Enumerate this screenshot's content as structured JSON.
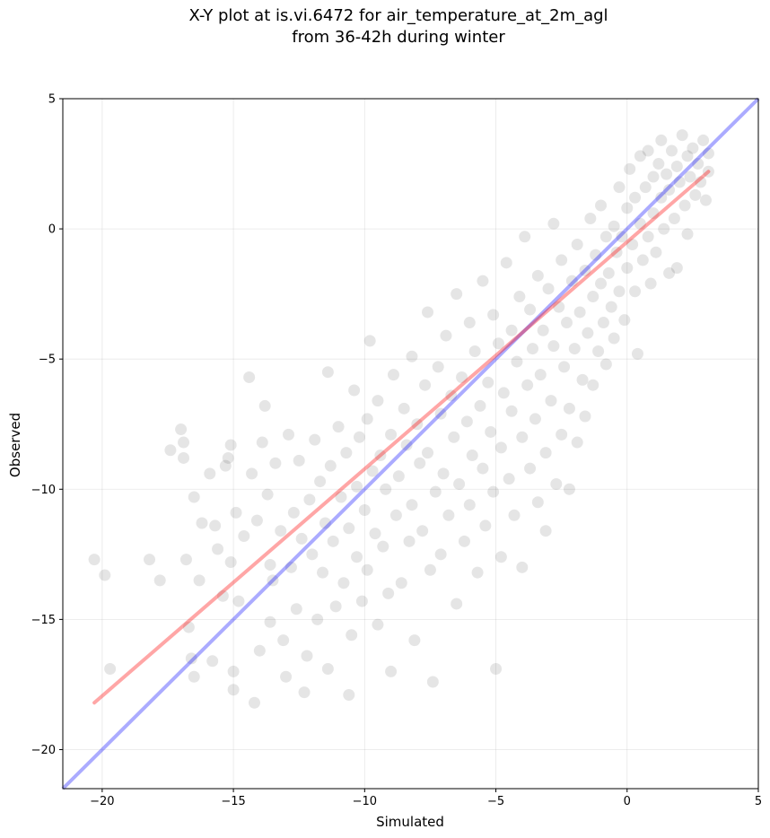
{
  "chart_data": {
    "type": "scatter",
    "title": "X-Y plot at is.vi.6472 for air_temperature_at_2m_agl",
    "subtitle": "from 36-42h during winter",
    "xlabel": "Simulated",
    "ylabel": "Observed",
    "xlim": [
      -21.5,
      5
    ],
    "ylim": [
      -21.5,
      5
    ],
    "xticks": [
      -20,
      -15,
      -10,
      -5,
      0,
      5
    ],
    "yticks": [
      -20,
      -15,
      -10,
      -5,
      0,
      5
    ],
    "xtick_labels": [
      "−20",
      "−15",
      "−10",
      "−5",
      "0",
      "5"
    ],
    "ytick_labels": [
      "−20",
      "−15",
      "−10",
      "−5",
      "0",
      "5"
    ],
    "grid": true,
    "point_color": "#000000",
    "point_alpha": 0.1,
    "fit_line": {
      "x": [
        -20.3,
        3.1
      ],
      "y": [
        -18.2,
        2.2
      ],
      "color": "#ff0000"
    },
    "identity_line": {
      "x": [
        -21.5,
        5
      ],
      "y": [
        -21.5,
        5
      ],
      "color": "#0000ff"
    },
    "points": [
      [
        -20.3,
        -12.7
      ],
      [
        -19.9,
        -13.3
      ],
      [
        -19.7,
        -16.9
      ],
      [
        -18.2,
        -12.7
      ],
      [
        -17.8,
        -13.5
      ],
      [
        -17.4,
        -8.5
      ],
      [
        -17.0,
        -7.7
      ],
      [
        -16.9,
        -8.2
      ],
      [
        -16.9,
        -8.8
      ],
      [
        -16.8,
        -12.7
      ],
      [
        -16.7,
        -15.3
      ],
      [
        -16.6,
        -16.5
      ],
      [
        -16.5,
        -17.2
      ],
      [
        -16.5,
        -10.3
      ],
      [
        -16.3,
        -13.5
      ],
      [
        -16.2,
        -11.3
      ],
      [
        -15.9,
        -9.4
      ],
      [
        -15.8,
        -16.6
      ],
      [
        -15.7,
        -11.4
      ],
      [
        -15.6,
        -12.3
      ],
      [
        -15.4,
        -14.1
      ],
      [
        -15.3,
        -9.1
      ],
      [
        -15.2,
        -8.8
      ],
      [
        -15.1,
        -8.3
      ],
      [
        -15.1,
        -12.8
      ],
      [
        -15.0,
        -17.0
      ],
      [
        -15.0,
        -17.7
      ],
      [
        -14.9,
        -10.9
      ],
      [
        -14.8,
        -14.3
      ],
      [
        -14.6,
        -11.8
      ],
      [
        -14.4,
        -5.7
      ],
      [
        -14.3,
        -9.4
      ],
      [
        -14.2,
        -18.2
      ],
      [
        -14.1,
        -11.2
      ],
      [
        -14.0,
        -16.2
      ],
      [
        -13.9,
        -8.2
      ],
      [
        -13.8,
        -6.8
      ],
      [
        -13.7,
        -10.2
      ],
      [
        -13.6,
        -12.9
      ],
      [
        -13.6,
        -15.1
      ],
      [
        -13.5,
        -13.5
      ],
      [
        -13.4,
        -9.0
      ],
      [
        -13.2,
        -11.6
      ],
      [
        -13.1,
        -15.8
      ],
      [
        -13.0,
        -17.2
      ],
      [
        -12.9,
        -7.9
      ],
      [
        -12.8,
        -13.0
      ],
      [
        -12.7,
        -10.9
      ],
      [
        -12.6,
        -14.6
      ],
      [
        -12.5,
        -8.9
      ],
      [
        -12.4,
        -11.9
      ],
      [
        -12.3,
        -17.8
      ],
      [
        -12.2,
        -16.4
      ],
      [
        -12.1,
        -10.4
      ],
      [
        -12.0,
        -12.5
      ],
      [
        -11.9,
        -8.1
      ],
      [
        -11.8,
        -15.0
      ],
      [
        -11.7,
        -9.7
      ],
      [
        -11.6,
        -13.2
      ],
      [
        -11.5,
        -11.3
      ],
      [
        -11.4,
        -5.5
      ],
      [
        -11.4,
        -16.9
      ],
      [
        -11.3,
        -9.1
      ],
      [
        -11.2,
        -12.0
      ],
      [
        -11.1,
        -14.5
      ],
      [
        -11.0,
        -7.6
      ],
      [
        -10.9,
        -10.3
      ],
      [
        -10.8,
        -13.6
      ],
      [
        -10.7,
        -8.6
      ],
      [
        -10.6,
        -11.5
      ],
      [
        -10.6,
        -17.9
      ],
      [
        -10.5,
        -15.6
      ],
      [
        -10.4,
        -6.2
      ],
      [
        -10.3,
        -9.9
      ],
      [
        -10.3,
        -12.6
      ],
      [
        -10.2,
        -8.0
      ],
      [
        -10.1,
        -14.3
      ],
      [
        -10.0,
        -10.8
      ],
      [
        -9.9,
        -7.3
      ],
      [
        -9.9,
        -13.1
      ],
      [
        -9.8,
        -4.3
      ],
      [
        -9.7,
        -9.3
      ],
      [
        -9.6,
        -11.7
      ],
      [
        -9.5,
        -15.2
      ],
      [
        -9.5,
        -6.6
      ],
      [
        -9.4,
        -8.7
      ],
      [
        -9.3,
        -12.2
      ],
      [
        -9.2,
        -10.0
      ],
      [
        -9.1,
        -14.0
      ],
      [
        -9.0,
        -7.9
      ],
      [
        -9.0,
        -17.0
      ],
      [
        -8.9,
        -5.6
      ],
      [
        -8.8,
        -11.0
      ],
      [
        -8.7,
        -9.5
      ],
      [
        -8.6,
        -13.6
      ],
      [
        -8.5,
        -6.9
      ],
      [
        -8.4,
        -8.3
      ],
      [
        -8.3,
        -12.0
      ],
      [
        -8.2,
        -4.9
      ],
      [
        -8.2,
        -10.6
      ],
      [
        -8.1,
        -15.8
      ],
      [
        -8.0,
        -7.5
      ],
      [
        -7.9,
        -9.0
      ],
      [
        -7.8,
        -11.6
      ],
      [
        -7.7,
        -6.0
      ],
      [
        -7.6,
        -3.2
      ],
      [
        -7.6,
        -8.6
      ],
      [
        -7.5,
        -13.1
      ],
      [
        -7.4,
        -17.4
      ],
      [
        -7.3,
        -10.1
      ],
      [
        -7.2,
        -5.3
      ],
      [
        -7.1,
        -7.1
      ],
      [
        -7.1,
        -12.5
      ],
      [
        -7.0,
        -9.4
      ],
      [
        -6.9,
        -4.1
      ],
      [
        -6.8,
        -11.0
      ],
      [
        -6.7,
        -6.4
      ],
      [
        -6.6,
        -8.0
      ],
      [
        -6.5,
        -14.4
      ],
      [
        -6.5,
        -2.5
      ],
      [
        -6.4,
        -9.8
      ],
      [
        -6.3,
        -5.7
      ],
      [
        -6.2,
        -12.0
      ],
      [
        -6.1,
        -7.4
      ],
      [
        -6.0,
        -3.6
      ],
      [
        -6.0,
        -10.6
      ],
      [
        -5.9,
        -8.7
      ],
      [
        -5.8,
        -4.7
      ],
      [
        -5.7,
        -13.2
      ],
      [
        -5.6,
        -6.8
      ],
      [
        -5.5,
        -9.2
      ],
      [
        -5.5,
        -2.0
      ],
      [
        -5.4,
        -11.4
      ],
      [
        -5.3,
        -5.9
      ],
      [
        -5.2,
        -7.8
      ],
      [
        -5.1,
        -3.3
      ],
      [
        -5.1,
        -10.1
      ],
      [
        -5.0,
        -16.9
      ],
      [
        -4.9,
        -4.4
      ],
      [
        -4.8,
        -8.4
      ],
      [
        -4.8,
        -12.6
      ],
      [
        -4.7,
        -6.3
      ],
      [
        -4.6,
        -1.3
      ],
      [
        -4.5,
        -9.6
      ],
      [
        -4.4,
        -3.9
      ],
      [
        -4.4,
        -7.0
      ],
      [
        -4.3,
        -11.0
      ],
      [
        -4.2,
        -5.1
      ],
      [
        -4.1,
        -2.6
      ],
      [
        -4.0,
        -8.0
      ],
      [
        -4.0,
        -13.0
      ],
      [
        -3.9,
        -0.3
      ],
      [
        -3.8,
        -6.0
      ],
      [
        -3.7,
        -9.2
      ],
      [
        -3.7,
        -3.1
      ],
      [
        -3.6,
        -4.6
      ],
      [
        -3.5,
        -7.3
      ],
      [
        -3.4,
        -10.5
      ],
      [
        -3.4,
        -1.8
      ],
      [
        -3.3,
        -5.6
      ],
      [
        -3.2,
        -3.9
      ],
      [
        -3.1,
        -8.6
      ],
      [
        -3.1,
        -11.6
      ],
      [
        -3.0,
        -2.3
      ],
      [
        -2.9,
        -6.6
      ],
      [
        -2.8,
        -4.5
      ],
      [
        -2.8,
        0.2
      ],
      [
        -2.7,
        -9.8
      ],
      [
        -2.6,
        -3.0
      ],
      [
        -2.5,
        -7.9
      ],
      [
        -2.5,
        -1.2
      ],
      [
        -2.4,
        -5.3
      ],
      [
        -2.3,
        -3.6
      ],
      [
        -2.2,
        -10.0
      ],
      [
        -2.2,
        -6.9
      ],
      [
        -2.1,
        -2.0
      ],
      [
        -2.0,
        -4.6
      ],
      [
        -1.9,
        -0.6
      ],
      [
        -1.9,
        -8.2
      ],
      [
        -1.8,
        -3.2
      ],
      [
        -1.7,
        -5.8
      ],
      [
        -1.6,
        -1.6
      ],
      [
        -1.6,
        -7.2
      ],
      [
        -1.5,
        -4.0
      ],
      [
        -1.4,
        0.4
      ],
      [
        -1.3,
        -2.6
      ],
      [
        -1.3,
        -6.0
      ],
      [
        -1.2,
        -1.0
      ],
      [
        -1.1,
        -4.7
      ],
      [
        -1.0,
        -2.1
      ],
      [
        -1.0,
        0.9
      ],
      [
        -0.9,
        -3.6
      ],
      [
        -0.8,
        -0.3
      ],
      [
        -0.8,
        -5.2
      ],
      [
        -0.7,
        -1.7
      ],
      [
        -0.6,
        -3.0
      ],
      [
        -0.5,
        0.1
      ],
      [
        -0.5,
        -4.2
      ],
      [
        -0.4,
        -0.9
      ],
      [
        -0.3,
        -2.4
      ],
      [
        -0.3,
        1.6
      ],
      [
        -0.2,
        -0.3
      ],
      [
        -0.1,
        -3.5
      ],
      [
        0.0,
        0.8
      ],
      [
        0.0,
        -1.5
      ],
      [
        0.1,
        2.3
      ],
      [
        0.2,
        -0.6
      ],
      [
        0.3,
        -2.4
      ],
      [
        0.3,
        1.2
      ],
      [
        0.4,
        -4.8
      ],
      [
        0.5,
        0.2
      ],
      [
        0.5,
        2.8
      ],
      [
        0.6,
        -1.2
      ],
      [
        0.7,
        1.6
      ],
      [
        0.8,
        -0.3
      ],
      [
        0.8,
        3.0
      ],
      [
        0.9,
        -2.1
      ],
      [
        1.0,
        2.0
      ],
      [
        1.0,
        0.6
      ],
      [
        1.1,
        -0.9
      ],
      [
        1.2,
        2.5
      ],
      [
        1.3,
        1.2
      ],
      [
        1.3,
        3.4
      ],
      [
        1.4,
        0.0
      ],
      [
        1.5,
        2.1
      ],
      [
        1.6,
        -1.7
      ],
      [
        1.6,
        1.5
      ],
      [
        1.7,
        3.0
      ],
      [
        1.8,
        0.4
      ],
      [
        1.9,
        2.4
      ],
      [
        1.9,
        -1.5
      ],
      [
        2.0,
        1.8
      ],
      [
        2.1,
        3.6
      ],
      [
        2.2,
        0.9
      ],
      [
        2.3,
        2.8
      ],
      [
        2.3,
        -0.2
      ],
      [
        2.4,
        2.0
      ],
      [
        2.5,
        3.1
      ],
      [
        2.6,
        1.3
      ],
      [
        2.7,
        2.5
      ],
      [
        2.8,
        1.8
      ],
      [
        2.9,
        3.4
      ],
      [
        3.0,
        1.1
      ],
      [
        3.1,
        2.2
      ],
      [
        3.1,
        2.9
      ]
    ]
  }
}
